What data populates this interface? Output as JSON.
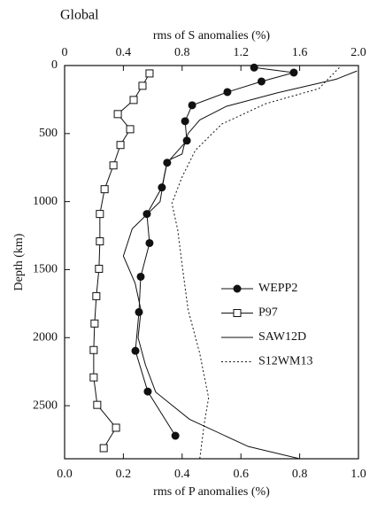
{
  "chart_data": {
    "type": "line",
    "title": "Global",
    "x_label": "rms of P anomalies (%)",
    "x2_label": "rms of S anomalies (%)",
    "y_label": "Depth (km)",
    "xlim": [
      0,
      1.0
    ],
    "xticks": [
      {
        "value": 0,
        "label": "0.0"
      },
      0.2,
      0.4,
      0.6,
      0.8,
      {
        "value": 1,
        "label": "1.0"
      }
    ],
    "x2lim": [
      0,
      2.0
    ],
    "x2ticks": [
      0,
      0.4,
      0.8,
      1.2,
      1.6,
      {
        "value": 2,
        "label": "2.0"
      }
    ],
    "ylim": [
      0,
      2890
    ],
    "yticks": [
      0,
      500,
      1000,
      1500,
      2000,
      2500
    ],
    "y_inverted": true,
    "legend": "center-right",
    "series": [
      {
        "name": "WEPP2",
        "color": "#111111",
        "marker": "circle",
        "dash": "solid",
        "axis": "x",
        "depths": [
          15,
          52,
          117,
          195,
          292,
          409,
          552,
          714,
          896,
          1091,
          1305,
          1552,
          1812,
          2097,
          2396,
          2721
        ],
        "values": [
          0.645,
          0.78,
          0.67,
          0.554,
          0.434,
          0.41,
          0.416,
          0.349,
          0.331,
          0.28,
          0.289,
          0.259,
          0.253,
          0.241,
          0.283,
          0.377
        ]
      },
      {
        "name": "P97",
        "color": "#111111",
        "marker": "square",
        "dash": "solid",
        "axis": "x",
        "depths": [
          58,
          149,
          253,
          357,
          468,
          584,
          734,
          909,
          1091,
          1292,
          1494,
          1695,
          1896,
          2091,
          2292,
          2494,
          2662,
          2812
        ],
        "values": [
          0.289,
          0.265,
          0.235,
          0.181,
          0.223,
          0.19,
          0.166,
          0.136,
          0.12,
          0.12,
          0.117,
          0.108,
          0.102,
          0.099,
          0.099,
          0.111,
          0.175,
          0.133
        ]
      },
      {
        "name": "SAW12D",
        "color": "#111111",
        "marker": null,
        "dash": "solid",
        "axis": "x2",
        "depths": [
          40,
          100,
          200,
          300,
          400,
          500,
          600,
          650,
          700,
          800,
          1000,
          1200,
          1400,
          1600,
          1800,
          2000,
          2200,
          2400,
          2600,
          2800,
          2890
        ],
        "values": [
          1.99,
          1.85,
          1.45,
          1.1,
          0.92,
          0.84,
          0.81,
          0.8,
          0.7,
          0.68,
          0.65,
          0.46,
          0.4,
          0.48,
          0.52,
          0.5,
          0.55,
          0.62,
          0.85,
          1.25,
          1.6
        ]
      },
      {
        "name": "S12WM13",
        "color": "#111111",
        "marker": null,
        "dash": "dotted",
        "axis": "x2",
        "depths": [
          15,
          170,
          280,
          430,
          623,
          818,
          1013,
          1208,
          1468,
          1792,
          2117,
          2442,
          2636,
          2890
        ],
        "values": [
          1.87,
          1.73,
          1.37,
          1.07,
          0.89,
          0.8,
          0.73,
          0.77,
          0.8,
          0.84,
          0.92,
          0.98,
          0.95,
          0.92
        ]
      }
    ]
  }
}
